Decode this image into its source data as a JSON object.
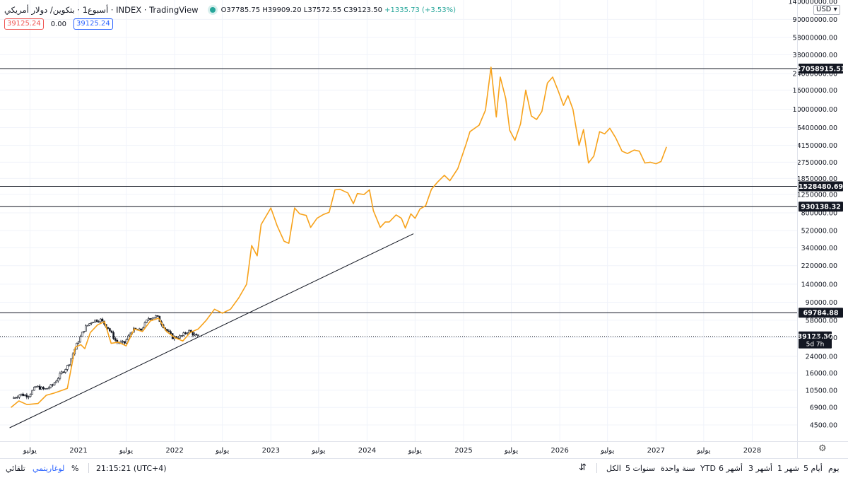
{
  "header": {
    "title": "أسبوع1 · بتكوين/ دولار أمريكي · INDEX · TradingView",
    "ohlc": {
      "open": "O37785.75",
      "high": "H39909.20",
      "low": "L37572.55",
      "close": "C39123.50",
      "change": "+1335.73 (+3.53%)"
    },
    "pill_left": "39125.24",
    "pill_mid": "0.00",
    "pill_right": "39125.24",
    "currency": "USD"
  },
  "colors": {
    "projection": "#f7a21b",
    "price": "#131722",
    "grid": "#f0f3fa",
    "accent": "#2962ff",
    "up": "#26a69a"
  },
  "chart_data": {
    "type": "line",
    "scale": "log",
    "grid": true,
    "y_ticks": [
      "140000000.00",
      "90000000.00",
      "58000000.00",
      "38000000.00",
      "24000000.00",
      "16000000.00",
      "10000000.00",
      "6400000.00",
      "4150000.00",
      "2750000.00",
      "1850000.00",
      "1250000.00",
      "800000.00",
      "520000.00",
      "340000.00",
      "220000.00",
      "140000.00",
      "90000.00",
      "58000.00",
      "38000.00",
      "24000.00",
      "16000.00",
      "10500.00",
      "6900.00",
      "4500.00"
    ],
    "x_ticks": [
      {
        "label": "يوليو",
        "date": "2020-07-01"
      },
      {
        "label": "2021",
        "date": "2021-01-01"
      },
      {
        "label": "يوليو",
        "date": "2021-07-01"
      },
      {
        "label": "2022",
        "date": "2022-01-01"
      },
      {
        "label": "يوليو",
        "date": "2022-07-01"
      },
      {
        "label": "2023",
        "date": "2023-01-01"
      },
      {
        "label": "يوليو",
        "date": "2023-07-01"
      },
      {
        "label": "2024",
        "date": "2024-01-01"
      },
      {
        "label": "يوليو",
        "date": "2024-07-01"
      },
      {
        "label": "2025",
        "date": "2025-01-01"
      },
      {
        "label": "يوليو",
        "date": "2025-07-01"
      },
      {
        "label": "2026",
        "date": "2026-01-01"
      },
      {
        "label": "يوليو",
        "date": "2026-07-01"
      },
      {
        "label": "2027",
        "date": "2027-01-01"
      },
      {
        "label": "يوليو",
        "date": "2027-07-01"
      },
      {
        "label": "2028",
        "date": "2028-01-01"
      }
    ],
    "horizontal_levels": [
      {
        "label": "27058915.51",
        "value": 27058915.51
      },
      {
        "label": "1528480.69",
        "value": 1528480.69
      },
      {
        "label": "930138.32",
        "value": 930138.32
      },
      {
        "label": "69784.88",
        "value": 69784.88
      }
    ],
    "last_price": {
      "label": "39123.50",
      "value": 39123.5,
      "countdown": "5d 7h"
    },
    "trendline": [
      {
        "x": "2020-04-15",
        "y": 4200
      },
      {
        "x": "2024-06-25",
        "y": 480000
      }
    ],
    "series": [
      {
        "kind": "candles-weekly",
        "points": [
          {
            "x": "2020-05-01",
            "y": 8600
          },
          {
            "x": "2020-06-01",
            "y": 9500
          },
          {
            "x": "2020-07-01",
            "y": 9200
          },
          {
            "x": "2020-08-01",
            "y": 11500
          },
          {
            "x": "2020-09-01",
            "y": 10700
          },
          {
            "x": "2020-10-01",
            "y": 11800
          },
          {
            "x": "2020-11-01",
            "y": 15500
          },
          {
            "x": "2020-12-01",
            "y": 19500
          },
          {
            "x": "2021-01-01",
            "y": 32000
          },
          {
            "x": "2021-02-01",
            "y": 48000
          },
          {
            "x": "2021-03-01",
            "y": 57000
          },
          {
            "x": "2021-04-01",
            "y": 59000
          },
          {
            "x": "2021-05-01",
            "y": 48000
          },
          {
            "x": "2021-06-01",
            "y": 34000
          },
          {
            "x": "2021-07-01",
            "y": 33000
          },
          {
            "x": "2021-08-01",
            "y": 46000
          },
          {
            "x": "2021-09-01",
            "y": 45000
          },
          {
            "x": "2021-10-01",
            "y": 61000
          },
          {
            "x": "2021-11-01",
            "y": 64000
          },
          {
            "x": "2021-12-01",
            "y": 48000
          },
          {
            "x": "2022-01-01",
            "y": 38000
          },
          {
            "x": "2022-02-01",
            "y": 39000
          },
          {
            "x": "2022-03-01",
            "y": 45000
          },
          {
            "x": "2022-04-01",
            "y": 39000
          }
        ]
      },
      {
        "kind": "projection",
        "points": [
          {
            "x": "2020-04-20",
            "y": 6900
          },
          {
            "x": "2020-05-20",
            "y": 8100
          },
          {
            "x": "2020-06-20",
            "y": 7400
          },
          {
            "x": "2020-08-01",
            "y": 7600
          },
          {
            "x": "2020-09-01",
            "y": 9300
          },
          {
            "x": "2020-10-01",
            "y": 9800
          },
          {
            "x": "2020-11-01",
            "y": 10500
          },
          {
            "x": "2020-11-20",
            "y": 11000
          },
          {
            "x": "2020-12-20",
            "y": 30000
          },
          {
            "x": "2021-01-10",
            "y": 32000
          },
          {
            "x": "2021-01-25",
            "y": 29000
          },
          {
            "x": "2021-02-15",
            "y": 43000
          },
          {
            "x": "2021-03-15",
            "y": 52000
          },
          {
            "x": "2021-04-10",
            "y": 56000
          },
          {
            "x": "2021-05-05",
            "y": 33000
          },
          {
            "x": "2021-06-01",
            "y": 34000
          },
          {
            "x": "2021-07-01",
            "y": 31000
          },
          {
            "x": "2021-08-01",
            "y": 47000
          },
          {
            "x": "2021-09-01",
            "y": 44000
          },
          {
            "x": "2021-10-01",
            "y": 57000
          },
          {
            "x": "2021-11-01",
            "y": 61000
          },
          {
            "x": "2021-12-01",
            "y": 44000
          },
          {
            "x": "2022-01-01",
            "y": 38000
          },
          {
            "x": "2022-02-01",
            "y": 35000
          },
          {
            "x": "2022-03-01",
            "y": 43000
          },
          {
            "x": "2022-04-01",
            "y": 47000
          },
          {
            "x": "2022-05-01",
            "y": 58000
          },
          {
            "x": "2022-06-01",
            "y": 76000
          },
          {
            "x": "2022-07-01",
            "y": 69000
          },
          {
            "x": "2022-08-01",
            "y": 76000
          },
          {
            "x": "2022-09-01",
            "y": 100000
          },
          {
            "x": "2022-10-01",
            "y": 140000
          },
          {
            "x": "2022-10-20",
            "y": 360000
          },
          {
            "x": "2022-11-10",
            "y": 280000
          },
          {
            "x": "2022-11-25",
            "y": 600000
          },
          {
            "x": "2023-01-01",
            "y": 900000
          },
          {
            "x": "2023-01-25",
            "y": 580000
          },
          {
            "x": "2023-02-20",
            "y": 400000
          },
          {
            "x": "2023-03-10",
            "y": 380000
          },
          {
            "x": "2023-04-01",
            "y": 900000
          },
          {
            "x": "2023-04-20",
            "y": 780000
          },
          {
            "x": "2023-05-15",
            "y": 750000
          },
          {
            "x": "2023-06-01",
            "y": 560000
          },
          {
            "x": "2023-06-25",
            "y": 700000
          },
          {
            "x": "2023-07-20",
            "y": 770000
          },
          {
            "x": "2023-08-10",
            "y": 810000
          },
          {
            "x": "2023-09-01",
            "y": 1400000
          },
          {
            "x": "2023-09-20",
            "y": 1420000
          },
          {
            "x": "2023-10-20",
            "y": 1300000
          },
          {
            "x": "2023-11-10",
            "y": 1000000
          },
          {
            "x": "2023-11-25",
            "y": 1280000
          },
          {
            "x": "2023-12-20",
            "y": 1250000
          },
          {
            "x": "2024-01-10",
            "y": 1400000
          },
          {
            "x": "2024-01-25",
            "y": 840000
          },
          {
            "x": "2024-02-20",
            "y": 560000
          },
          {
            "x": "2024-03-10",
            "y": 640000
          },
          {
            "x": "2024-03-25",
            "y": 640000
          },
          {
            "x": "2024-04-20",
            "y": 760000
          },
          {
            "x": "2024-05-10",
            "y": 700000
          },
          {
            "x": "2024-05-25",
            "y": 550000
          },
          {
            "x": "2024-06-15",
            "y": 780000
          },
          {
            "x": "2024-07-01",
            "y": 700000
          },
          {
            "x": "2024-07-20",
            "y": 880000
          },
          {
            "x": "2024-08-10",
            "y": 950000
          },
          {
            "x": "2024-09-01",
            "y": 1420000
          },
          {
            "x": "2024-09-25",
            "y": 1700000
          },
          {
            "x": "2024-10-20",
            "y": 2000000
          },
          {
            "x": "2024-11-10",
            "y": 1750000
          },
          {
            "x": "2024-12-10",
            "y": 2350000
          },
          {
            "x": "2025-01-10",
            "y": 4250000
          },
          {
            "x": "2025-01-25",
            "y": 5800000
          },
          {
            "x": "2025-03-01",
            "y": 6800000
          },
          {
            "x": "2025-03-25",
            "y": 9800000
          },
          {
            "x": "2025-04-15",
            "y": 28000000
          },
          {
            "x": "2025-05-05",
            "y": 8300000
          },
          {
            "x": "2025-05-20",
            "y": 22000000
          },
          {
            "x": "2025-06-10",
            "y": 13000000
          },
          {
            "x": "2025-06-25",
            "y": 6000000
          },
          {
            "x": "2025-07-15",
            "y": 4700000
          },
          {
            "x": "2025-08-05",
            "y": 7000000
          },
          {
            "x": "2025-08-25",
            "y": 16000000
          },
          {
            "x": "2025-09-15",
            "y": 8500000
          },
          {
            "x": "2025-10-05",
            "y": 7800000
          },
          {
            "x": "2025-10-25",
            "y": 9500000
          },
          {
            "x": "2025-11-15",
            "y": 19000000
          },
          {
            "x": "2025-12-05",
            "y": 22000000
          },
          {
            "x": "2025-12-25",
            "y": 16000000
          },
          {
            "x": "2026-01-15",
            "y": 11000000
          },
          {
            "x": "2026-02-01",
            "y": 14000000
          },
          {
            "x": "2026-02-20",
            "y": 10000000
          },
          {
            "x": "2026-03-15",
            "y": 4150000
          },
          {
            "x": "2026-04-01",
            "y": 6100000
          },
          {
            "x": "2026-04-20",
            "y": 2700000
          },
          {
            "x": "2026-05-10",
            "y": 3200000
          },
          {
            "x": "2026-06-01",
            "y": 5800000
          },
          {
            "x": "2026-06-20",
            "y": 5500000
          },
          {
            "x": "2026-07-10",
            "y": 6300000
          },
          {
            "x": "2026-08-01",
            "y": 5000000
          },
          {
            "x": "2026-08-25",
            "y": 3600000
          },
          {
            "x": "2026-09-15",
            "y": 3400000
          },
          {
            "x": "2026-10-10",
            "y": 3700000
          },
          {
            "x": "2026-10-30",
            "y": 3600000
          },
          {
            "x": "2026-11-20",
            "y": 2700000
          },
          {
            "x": "2026-12-10",
            "y": 2750000
          },
          {
            "x": "2027-01-01",
            "y": 2650000
          },
          {
            "x": "2027-01-20",
            "y": 2800000
          },
          {
            "x": "2027-02-10",
            "y": 4000000
          }
        ]
      }
    ]
  },
  "bottom": {
    "timeframes": [
      "يوم",
      "5 أيام",
      "1 شهر",
      "3 أشهر",
      "6 أشهر",
      "YTD",
      "سنة واحدة",
      "5 سنوات",
      "الكل"
    ],
    "time": "21:15:21 (UTC+4)",
    "percent": "%",
    "log": "لوغاريتمي",
    "auto": "تلقائي"
  }
}
